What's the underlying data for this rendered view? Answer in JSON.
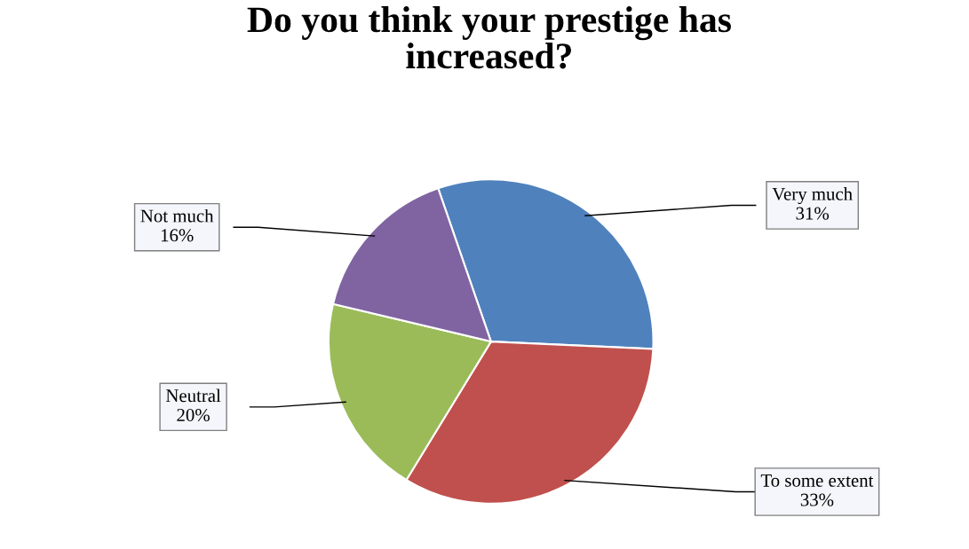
{
  "chart_data": {
    "type": "pie",
    "title": "Do you think your prestige has\nincreased?",
    "categories": [
      "Very much",
      "To some extent",
      "Neutral",
      "Not much"
    ],
    "values": [
      31,
      33,
      20,
      16
    ],
    "colors": [
      "#4f81bd",
      "#c0504d",
      "#9bbb59",
      "#8064a2"
    ],
    "value_labels": [
      "31%",
      "33%",
      "20%",
      "16%"
    ],
    "legend": false
  }
}
